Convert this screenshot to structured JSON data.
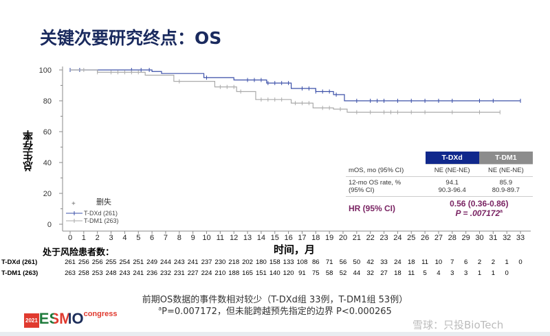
{
  "title": "关键次要研究终点：OS",
  "chart_data": {
    "type": "line",
    "ylabel": "总生存率",
    "xlabel": "时间，月",
    "y_ticks": [
      "100",
      "80",
      "60",
      "40",
      "20",
      "0"
    ],
    "x_ticks": [
      "0",
      "1",
      "2",
      "3",
      "4",
      "5",
      "6",
      "7",
      "8",
      "9",
      "10",
      "11",
      "12",
      "13",
      "14",
      "15",
      "16",
      "17",
      "18",
      "19",
      "20",
      "21",
      "22",
      "23",
      "24",
      "25",
      "26",
      "27",
      "28",
      "29",
      "30",
      "31",
      "32",
      "33"
    ],
    "xlim": [
      0,
      33
    ],
    "ylim": [
      0,
      100
    ],
    "legend": {
      "censor_label": "删失",
      "position": "bottom-left"
    },
    "series": [
      {
        "name": "T-DXd (261)",
        "color": "#3a4fa8",
        "points": [
          [
            0,
            100
          ],
          [
            6,
            99
          ],
          [
            6.7,
            97.7
          ],
          [
            9.8,
            95
          ],
          [
            12,
            93.5
          ],
          [
            14.4,
            91.5
          ],
          [
            16.2,
            88
          ],
          [
            18,
            86
          ],
          [
            19.3,
            84
          ],
          [
            20.1,
            80
          ],
          [
            33,
            80
          ]
        ],
        "censors": [
          0,
          0.7,
          4.5,
          5.2,
          5.8,
          10,
          13,
          13.5,
          14,
          14.5,
          15,
          15.5,
          16,
          17,
          17.5,
          18,
          18.5,
          19,
          19.5,
          21,
          22,
          22.5,
          23,
          24,
          25,
          26,
          27,
          28,
          30,
          31,
          33
        ]
      },
      {
        "name": "T-DM1 (263)",
        "color": "#aaaaaa",
        "points": [
          [
            0,
            100
          ],
          [
            2,
            98.5
          ],
          [
            5.5,
            96.6
          ],
          [
            7.6,
            92.6
          ],
          [
            10.6,
            89
          ],
          [
            12.2,
            86
          ],
          [
            13.6,
            80.8
          ],
          [
            16.2,
            78.5
          ],
          [
            17.8,
            75.4
          ],
          [
            19.3,
            74.6
          ],
          [
            20.3,
            72.6
          ],
          [
            31.5,
            72.6
          ]
        ],
        "censors": [
          1,
          2,
          3,
          3.5,
          4,
          4.5,
          5,
          8,
          11,
          11.5,
          12,
          12.5,
          14,
          14.5,
          15,
          15.5,
          16.5,
          17,
          17.5,
          18.5,
          19,
          19.8,
          21,
          22,
          23,
          23.5,
          24,
          25,
          26,
          28,
          30,
          31.5
        ]
      }
    ]
  },
  "risk": {
    "title": "处于风险患者数：",
    "rows": [
      {
        "label": "T-DXd (261)",
        "values": [
          "261",
          "256",
          "256",
          "255",
          "254",
          "251",
          "249",
          "244",
          "243",
          "241",
          "237",
          "230",
          "218",
          "202",
          "180",
          "158",
          "133",
          "108",
          "86",
          "71",
          "56",
          "50",
          "42",
          "33",
          "24",
          "18",
          "11",
          "10",
          "7",
          "6",
          "2",
          "2",
          "1",
          "0"
        ]
      },
      {
        "label": "T-DM1 (263)",
        "values": [
          "263",
          "258",
          "253",
          "248",
          "243",
          "241",
          "236",
          "232",
          "231",
          "227",
          "224",
          "210",
          "188",
          "165",
          "151",
          "140",
          "120",
          "91",
          "75",
          "58",
          "52",
          "44",
          "32",
          "27",
          "18",
          "11",
          "5",
          "4",
          "3",
          "3",
          "1",
          "1",
          "0"
        ]
      }
    ]
  },
  "stats": {
    "col1": "T-DXd",
    "col2": "T-DM1",
    "mos_label": "mOS, mo (95% CI)",
    "mos1": "NE (NE-NE)",
    "mos2": "NE (NE-NE)",
    "rate_label1": "12-mo OS rate, %",
    "rate_label2": "(95% CI)",
    "rate1": "94.1",
    "ci1": "90.3-96.4",
    "rate2": "85.9",
    "ci2": "80.9-89.7",
    "hr_label": "HR (95% CI)",
    "hr": "0.56 (0.36-0.86)",
    "p": "P = .007172",
    "p_sup": "a"
  },
  "footnote1": "前期OS数据的事件数相对较少（T-DXd组 33例，T-DM1组 53例）",
  "footnote2_sup": "a",
  "footnote2": "P=0.007172，但未能跨越预先指定的边界 P<0.000265",
  "logo": {
    "year": "2021",
    "name": "ESMO",
    "suffix": "congress"
  },
  "watermark": "雪球：只投BioTech",
  "colors": {
    "title": "#1a2a5e",
    "tdxd": "#10288c",
    "tdm1": "#8c8c8c",
    "hr": "#7a2463"
  }
}
